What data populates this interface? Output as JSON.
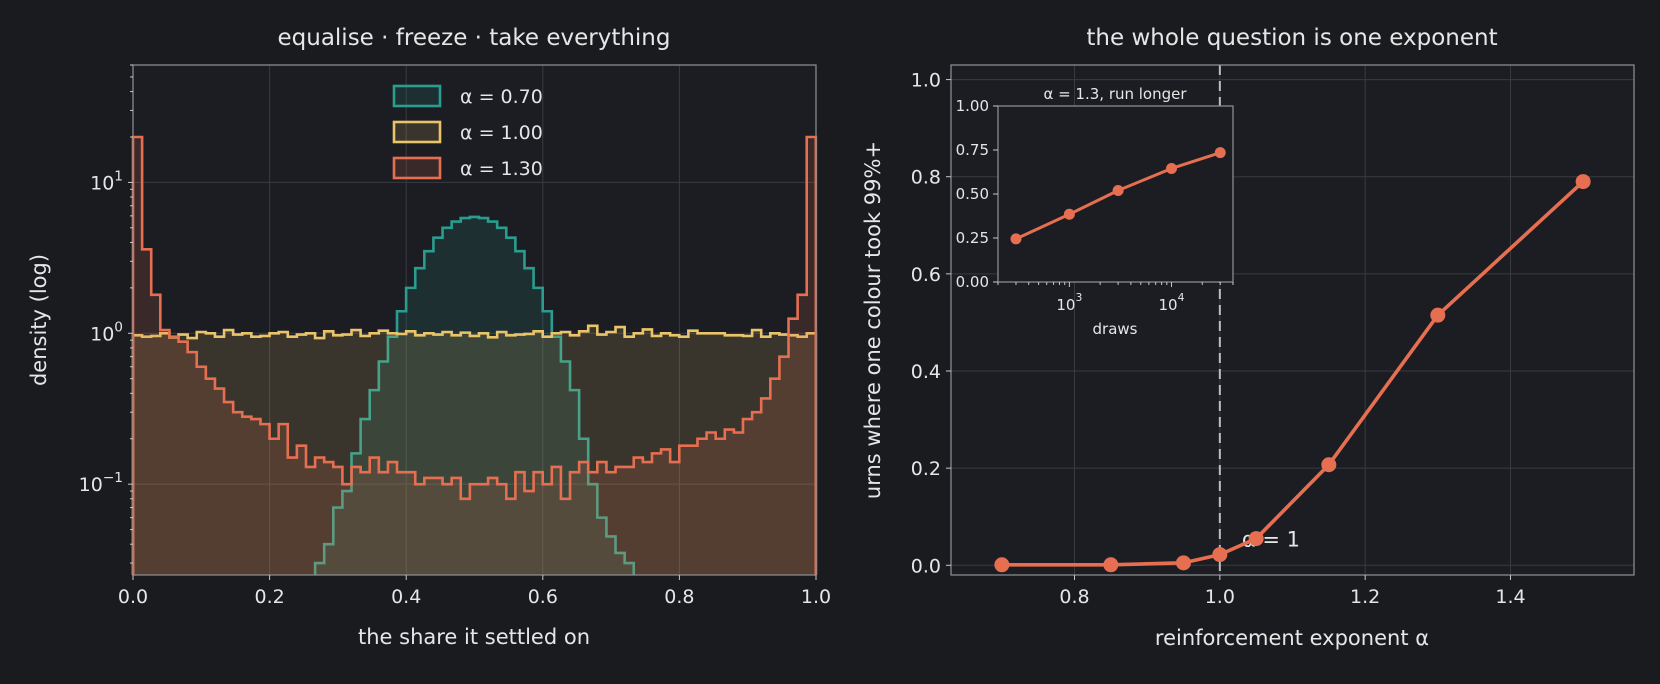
{
  "chart_data": [
    {
      "type": "histogram",
      "title": "equalise · freeze · take everything",
      "xlabel": "the share it settled on",
      "ylabel": "density (log)",
      "xlim": [
        0,
        1
      ],
      "ylim": [
        0.025,
        60
      ],
      "yscale": "log",
      "grid": true,
      "legend_placement": "top-center",
      "x_ticks": [
        "0.0",
        "0.2",
        "0.4",
        "0.6",
        "0.8",
        "1.0"
      ],
      "x_tick_values": [
        0,
        0.2,
        0.4,
        0.6,
        0.8,
        1.0
      ],
      "y_ticks": [
        {
          "base": "10",
          "exp": "1",
          "value": 10
        },
        {
          "base": "10",
          "exp": "0",
          "value": 1
        },
        {
          "base": "10",
          "exp": "−1",
          "value": 0.1
        }
      ],
      "bin_edges_start": 0,
      "bin_width": 0.01333,
      "series": [
        {
          "name": "α = 0.70",
          "color": "#2a9d8f",
          "density": [
            0,
            0,
            0,
            0,
            0,
            0,
            0,
            0,
            0,
            0,
            0,
            0,
            0,
            0,
            0,
            0,
            0,
            0,
            0,
            0,
            0.03,
            0.04,
            0.07,
            0.09,
            0.16,
            0.27,
            0.42,
            0.65,
            0.95,
            1.4,
            2.0,
            2.7,
            3.5,
            4.3,
            5.0,
            5.5,
            5.8,
            5.9,
            5.8,
            5.5,
            5.0,
            4.3,
            3.5,
            2.7,
            2.0,
            1.4,
            0.95,
            0.65,
            0.42,
            0.2,
            0.1,
            0.06,
            0.045,
            0.035,
            0.03,
            0,
            0,
            0,
            0,
            0,
            0,
            0,
            0,
            0,
            0,
            0,
            0,
            0,
            0,
            0,
            0,
            0,
            0,
            0,
            0
          ]
        },
        {
          "name": "α = 1.00",
          "color": "#e9c46a",
          "density": [
            0.97,
            0.95,
            0.96,
            1.0,
            0.94,
            0.98,
            0.93,
            1.02,
            1.0,
            0.95,
            1.05,
            0.98,
            1.0,
            0.95,
            0.96,
            1.0,
            1.02,
            0.95,
            0.98,
            1.0,
            0.93,
            1.03,
            0.97,
            0.98,
            1.05,
            0.96,
            1.0,
            1.04,
            1.0,
            0.99,
            1.03,
            0.97,
            1.0,
            0.98,
            1.02,
            0.97,
            1.01,
            0.96,
            1.0,
            0.94,
            1.02,
            0.97,
            0.98,
            0.99,
            1.03,
            0.95,
            1.0,
            1.02,
            0.97,
            1.03,
            1.12,
            0.98,
            1.02,
            1.1,
            0.95,
            1.0,
            1.06,
            0.96,
            1.0,
            0.97,
            0.95,
            1.04,
            1.0,
            1.0,
            1.0,
            0.97,
            0.97,
            0.96,
            1.05,
            0.95,
            1.0,
            0.98,
            0.97,
            0.95,
            1.0
          ]
        },
        {
          "name": "α = 1.30",
          "color": "#e76f51",
          "density": [
            20,
            3.6,
            1.8,
            1.05,
            0.95,
            0.88,
            0.75,
            0.6,
            0.5,
            0.43,
            0.35,
            0.3,
            0.28,
            0.27,
            0.25,
            0.2,
            0.25,
            0.15,
            0.18,
            0.13,
            0.15,
            0.14,
            0.13,
            0.1,
            0.13,
            0.12,
            0.15,
            0.12,
            0.14,
            0.12,
            0.12,
            0.1,
            0.11,
            0.11,
            0.1,
            0.11,
            0.08,
            0.1,
            0.1,
            0.11,
            0.1,
            0.08,
            0.12,
            0.09,
            0.12,
            0.1,
            0.13,
            0.08,
            0.12,
            0.14,
            0.12,
            0.14,
            0.12,
            0.13,
            0.13,
            0.15,
            0.14,
            0.16,
            0.17,
            0.14,
            0.18,
            0.18,
            0.2,
            0.22,
            0.2,
            0.23,
            0.22,
            0.27,
            0.3,
            0.37,
            0.5,
            0.7,
            1.25,
            1.8,
            20
          ]
        }
      ]
    },
    {
      "type": "line",
      "title": "the whole question is one exponent",
      "xlabel": "reinforcement exponent  α",
      "ylabel": "urns where one colour took 99%+",
      "xlim": [
        0.63,
        1.57
      ],
      "ylim": [
        -0.02,
        1.03
      ],
      "grid": true,
      "x_ticks": [
        "0.8",
        "1.0",
        "1.2",
        "1.4"
      ],
      "x_tick_values": [
        0.8,
        1.0,
        1.2,
        1.4
      ],
      "y_ticks": [
        "0.0",
        "0.2",
        "0.4",
        "0.6",
        "0.8",
        "1.0"
      ],
      "y_tick_values": [
        0,
        0.2,
        0.4,
        0.6,
        0.8,
        1.0
      ],
      "color": "#e76f51",
      "x": [
        0.7,
        0.85,
        0.95,
        1.0,
        1.05,
        1.15,
        1.3,
        1.5
      ],
      "y": [
        0.001,
        0.001,
        0.005,
        0.022,
        0.055,
        0.207,
        0.515,
        0.79
      ],
      "vline": {
        "x": 1.0,
        "label": "α = 1"
      },
      "inset": {
        "type": "line",
        "title": "α = 1.3, run longer",
        "xlabel": "draws",
        "xscale": "log",
        "xlim": [
          200,
          40000
        ],
        "ylim": [
          0,
          1.0
        ],
        "x_ticks": [
          {
            "base": "10",
            "exp": "3",
            "value": 1000
          },
          {
            "base": "10",
            "exp": "4",
            "value": 10000
          }
        ],
        "y_ticks": [
          "0.00",
          "0.25",
          "0.50",
          "0.75",
          "1.00"
        ],
        "y_tick_values": [
          0,
          0.25,
          0.5,
          0.75,
          1.0
        ],
        "x": [
          300,
          1000,
          3000,
          10000,
          30000
        ],
        "y": [
          0.245,
          0.385,
          0.52,
          0.645,
          0.735
        ]
      }
    }
  ]
}
